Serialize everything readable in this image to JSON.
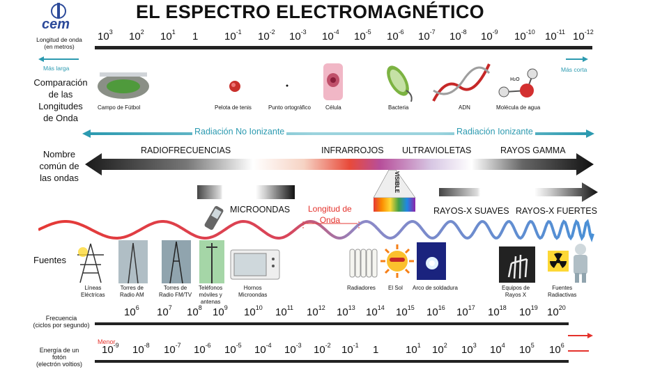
{
  "title": "EL ESPECTRO ELECTROMAGNÉTICO",
  "logo": "cem",
  "wavelength_label": "Longitud de onda\n(en metros)",
  "wavelength_ticks": [
    {
      "base": "10",
      "exp": "3"
    },
    {
      "base": "10",
      "exp": "2"
    },
    {
      "base": "10",
      "exp": "1"
    },
    {
      "base": "1",
      "exp": ""
    },
    {
      "base": "10",
      "exp": "-1"
    },
    {
      "base": "10",
      "exp": "-2"
    },
    {
      "base": "10",
      "exp": "-3"
    },
    {
      "base": "10",
      "exp": "-4"
    },
    {
      "base": "10",
      "exp": "-5"
    },
    {
      "base": "10",
      "exp": "-6"
    },
    {
      "base": "10",
      "exp": "-7"
    },
    {
      "base": "10",
      "exp": "-8"
    },
    {
      "base": "10",
      "exp": "-9"
    },
    {
      "base": "10",
      "exp": "-10"
    },
    {
      "base": "10",
      "exp": "-11"
    },
    {
      "base": "10",
      "exp": "-12"
    }
  ],
  "mas_larga": "Más larga",
  "mas_corta": "Más corta",
  "comparison_heading": "Comparación\nde las\nLongitudes\nde Onda",
  "comparison_items": [
    "Campo de Fútbol",
    "Pelota de tenis",
    "Punto ortográfico",
    "Célula",
    "Bacteria",
    "ADN",
    "Molécula de agua"
  ],
  "radiacion_no_ionizante": "Radiación No Ionizante",
  "radiacion_ionizante": "Radiación Ionizante",
  "common_name_heading": "Nombre\ncomún de\nlas ondas",
  "bands": {
    "radiofrecuencias": "RADIOFRECUENCIAS",
    "infrarrojos": "INFRARROJOS",
    "ultravioletas": "ULTRAVIOLETAS",
    "rayos_gamma": "RAYOS GAMMA",
    "visible": "VISIBLE",
    "microondas": "MICROONDAS",
    "rayos_x_suaves": "RAYOS-X SUAVES",
    "rayos_x_fuertes": "RAYOS-X FUERTES"
  },
  "longitud_de_onda": "Longitud de\nOnda",
  "sources_heading": "Fuentes",
  "sources": [
    "Líneas\nEléctricas",
    "Torres de\nRadio AM",
    "Torres de\nRadio FM/TV",
    "Teléfonos\nmóviles y\nantenas",
    "Hornos\nMicroondas",
    "Radiadores",
    "El Sol",
    "Arco de soldadura",
    "Equipos de\nRayos X",
    "Fuentes\nRadiactivas"
  ],
  "frequency_label": "Frecuencia\n(ciclos por segundo)",
  "frequency_ticks": [
    {
      "base": "10",
      "exp": "6"
    },
    {
      "base": "10",
      "exp": "7"
    },
    {
      "base": "10",
      "exp": "8"
    },
    {
      "base": "10",
      "exp": "9"
    },
    {
      "base": "10",
      "exp": "10"
    },
    {
      "base": "10",
      "exp": "11"
    },
    {
      "base": "10",
      "exp": "12"
    },
    {
      "base": "10",
      "exp": "13"
    },
    {
      "base": "10",
      "exp": "14"
    },
    {
      "base": "10",
      "exp": "15"
    },
    {
      "base": "10",
      "exp": "16"
    },
    {
      "base": "10",
      "exp": "17"
    },
    {
      "base": "10",
      "exp": "18"
    },
    {
      "base": "10",
      "exp": "19"
    },
    {
      "base": "10",
      "exp": "20"
    }
  ],
  "menor": "Menor",
  "energy_label": "Energía de un\nfotón\n(electrón voltios)",
  "energy_ticks": [
    {
      "base": "10",
      "exp": "-9"
    },
    {
      "base": "10",
      "exp": "-8"
    },
    {
      "base": "10",
      "exp": "-7"
    },
    {
      "base": "10",
      "exp": "-6"
    },
    {
      "base": "10",
      "exp": "-5"
    },
    {
      "base": "10",
      "exp": "-4"
    },
    {
      "base": "10",
      "exp": "-3"
    },
    {
      "base": "10",
      "exp": "-2"
    },
    {
      "base": "10",
      "exp": "-1"
    },
    {
      "base": "1",
      "exp": ""
    },
    {
      "base": "10",
      "exp": "1"
    },
    {
      "base": "10",
      "exp": "2"
    },
    {
      "base": "10",
      "exp": "3"
    },
    {
      "base": "10",
      "exp": "4"
    },
    {
      "base": "10",
      "exp": "5"
    },
    {
      "base": "10",
      "exp": "6"
    }
  ],
  "colors": {
    "teal": "#2c9ab0",
    "red": "#e4312b",
    "dark": "#111111"
  }
}
